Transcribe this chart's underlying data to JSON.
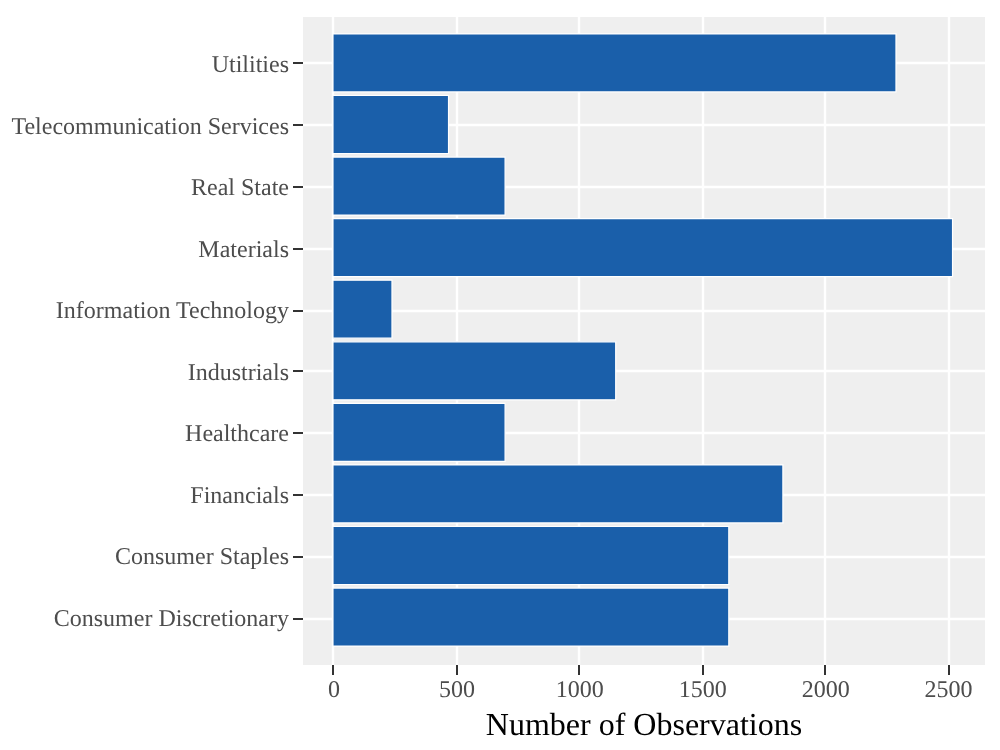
{
  "chart_data": {
    "type": "bar",
    "orientation": "horizontal",
    "xlabel": "Number of Observations",
    "categories": [
      "Utilities",
      "Telecommunication Services",
      "Real State",
      "Materials",
      "Information Technology",
      "Industrials",
      "Healthcare",
      "Financials",
      "Consumer Staples",
      "Consumer Discretionary"
    ],
    "values": [
      2290,
      470,
      700,
      2520,
      240,
      1150,
      700,
      1830,
      1610,
      1610
    ],
    "color": "#1a5faa",
    "xlim": [
      -126,
      2648
    ],
    "xticks": [
      0,
      500,
      1000,
      1500,
      2000,
      2500
    ],
    "grid": true
  }
}
